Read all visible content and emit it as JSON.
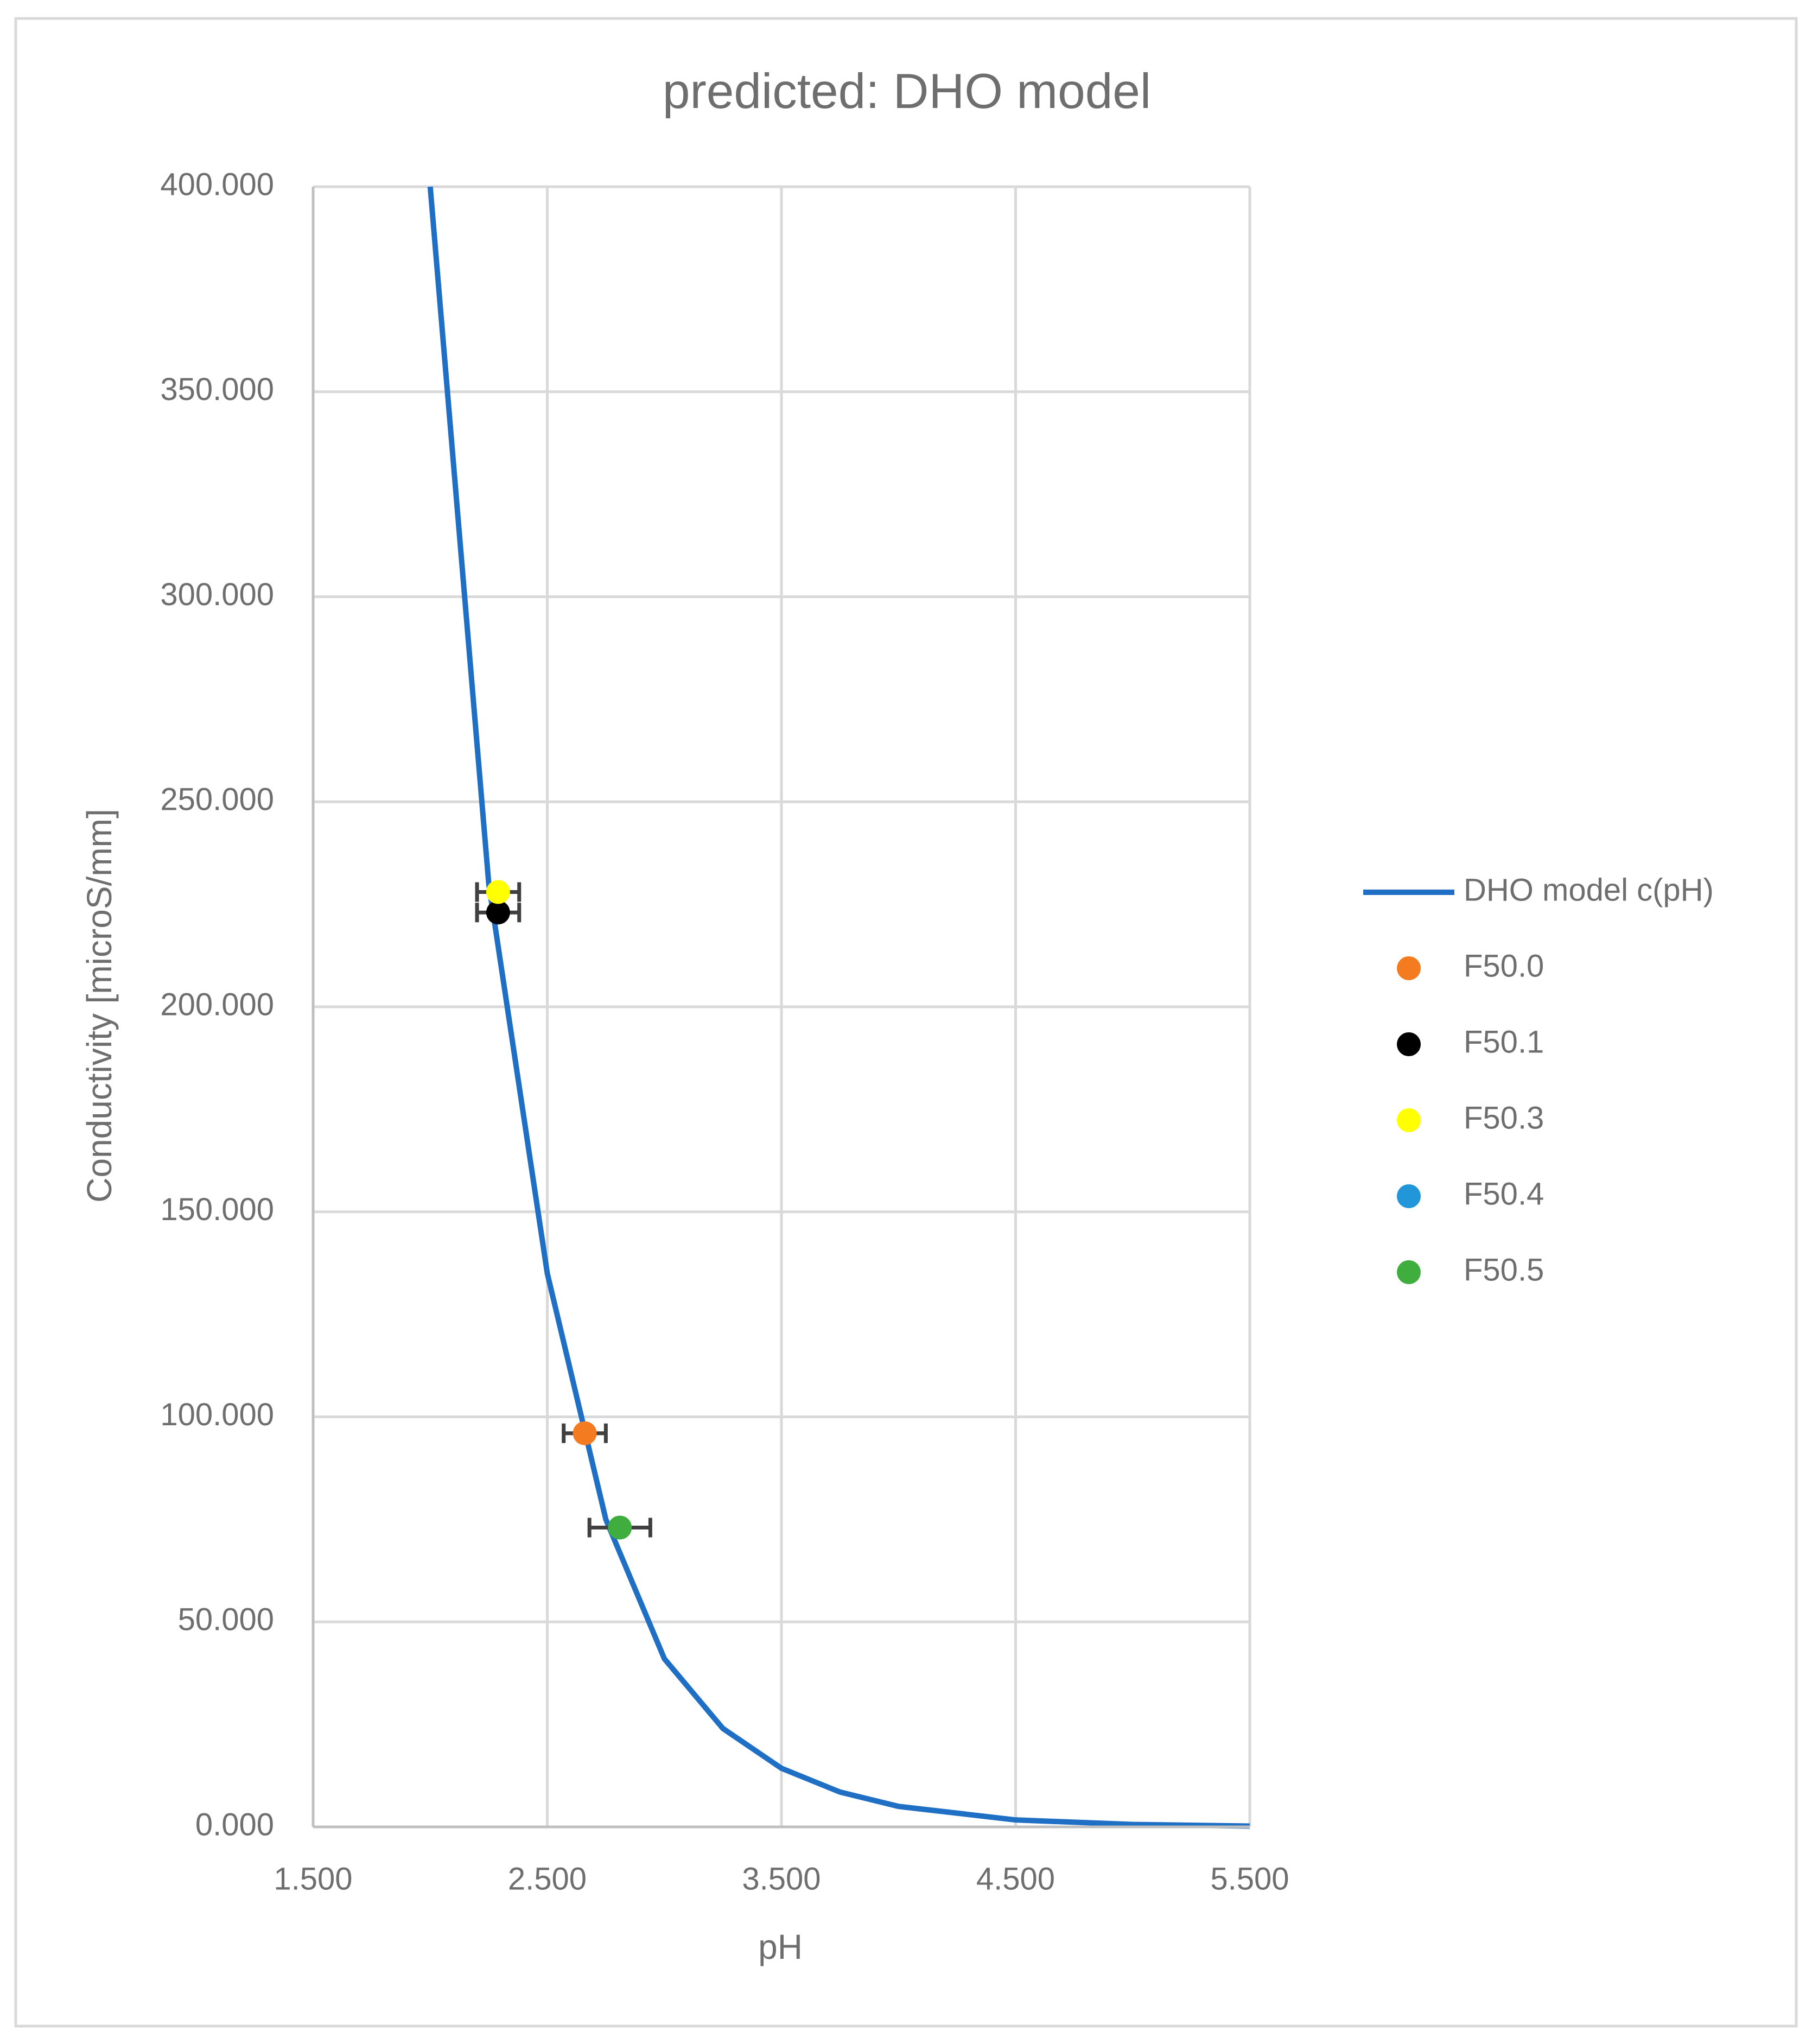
{
  "chart_data": {
    "type": "scatter",
    "title": "predicted: DHO model",
    "x_label": "pH",
    "y_label": "Conductivity [microS/mm]",
    "xlim": [
      1.5,
      5.5
    ],
    "ylim": [
      0,
      400
    ],
    "xticks": [
      {
        "value": 1.5,
        "label": "1.500"
      },
      {
        "value": 2.5,
        "label": "2.500"
      },
      {
        "value": 3.5,
        "label": "3.500"
      },
      {
        "value": 4.5,
        "label": "4.500"
      },
      {
        "value": 5.5,
        "label": "5.500"
      }
    ],
    "yticks": [
      {
        "value": 0,
        "label": "0.000"
      },
      {
        "value": 50,
        "label": "50.000"
      },
      {
        "value": 100,
        "label": "100.000"
      },
      {
        "value": 150,
        "label": "150.000"
      },
      {
        "value": 200,
        "label": "200.000"
      },
      {
        "value": 250,
        "label": "250.000"
      },
      {
        "value": 300,
        "label": "300.000"
      },
      {
        "value": 350,
        "label": "350.000"
      },
      {
        "value": 400,
        "label": "400.000"
      }
    ],
    "grid": true,
    "legend": "right",
    "series": [
      {
        "name": "DHO model c(pH)",
        "color": "#1f6fc5",
        "style": "line",
        "x": [
          2.0,
          2.25,
          2.5,
          2.75,
          3.0,
          3.25,
          3.5,
          3.75,
          4.0,
          4.5,
          5.0,
          5.5
        ],
        "y": [
          400,
          230,
          135,
          75,
          41,
          24,
          14.3,
          8.5,
          5,
          1.7,
          0.6,
          0.2
        ]
      },
      {
        "name": "F50.0",
        "color": "#f47b20",
        "style": "marker",
        "x": [
          2.66
        ],
        "y": [
          96
        ],
        "xerr": [
          0.09
        ]
      },
      {
        "name": "F50.1",
        "color": "#000000",
        "style": "marker",
        "x": [
          2.29
        ],
        "y": [
          223
        ],
        "xerr": [
          0.09
        ]
      },
      {
        "name": "F50.3",
        "color": "#ffff00",
        "style": "marker",
        "x": [
          2.29
        ],
        "y": [
          228
        ],
        "xerr": [
          0.09
        ]
      },
      {
        "name": "F50.4",
        "color": "#2196d8",
        "style": "marker",
        "x": [],
        "y": [],
        "xerr": []
      },
      {
        "name": "F50.5",
        "color": "#3fae3f",
        "style": "marker",
        "x": [
          2.81
        ],
        "y": [
          73
        ],
        "xerr": [
          0.13
        ]
      }
    ]
  }
}
